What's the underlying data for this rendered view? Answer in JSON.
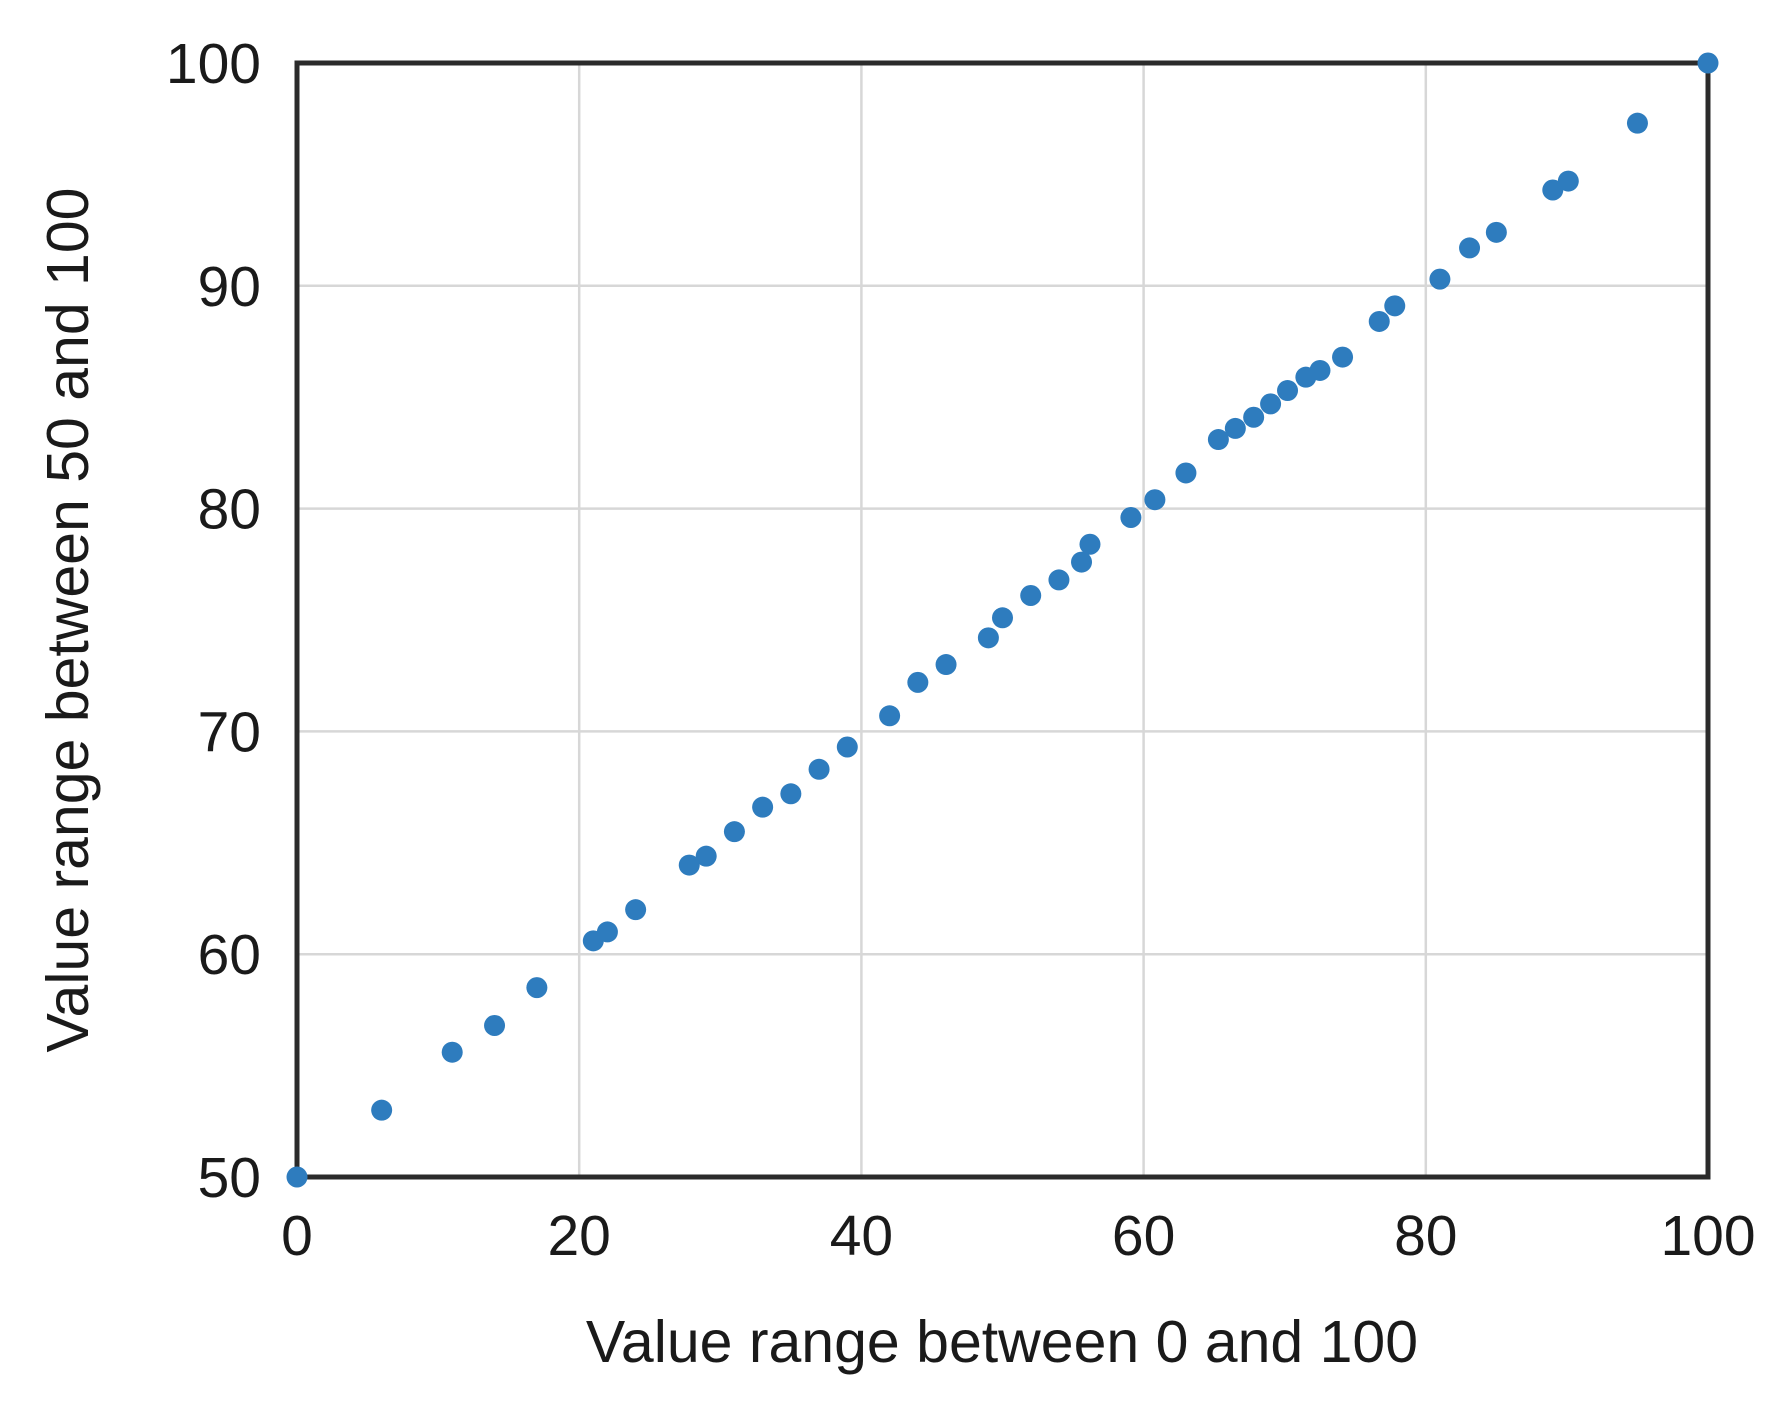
{
  "chart_data": {
    "type": "scatter",
    "title": "",
    "xlabel": "Value range between 0 and 100",
    "ylabel": "Value range between 50 and 100",
    "xlim": [
      0,
      100
    ],
    "ylim": [
      50,
      100
    ],
    "x_ticks": [
      0,
      20,
      40,
      60,
      80,
      100
    ],
    "y_ticks": [
      50,
      60,
      70,
      80,
      90,
      100
    ],
    "grid": true,
    "legend": "none",
    "marker_color": "#2e7cbe",
    "axis_color": "#2b2b2b",
    "grid_color": "#d7d7d7",
    "text_color": "#1a1a1a",
    "series": [
      {
        "name": "values",
        "points": [
          [
            0,
            50.0
          ],
          [
            6,
            53.0
          ],
          [
            11,
            55.6
          ],
          [
            14,
            56.8
          ],
          [
            17,
            58.5
          ],
          [
            21,
            60.6
          ],
          [
            22,
            61.0
          ],
          [
            24,
            62.0
          ],
          [
            27.8,
            64.0
          ],
          [
            29,
            64.4
          ],
          [
            31,
            65.5
          ],
          [
            33,
            66.6
          ],
          [
            35,
            67.2
          ],
          [
            37,
            68.3
          ],
          [
            39,
            69.3
          ],
          [
            42,
            70.7
          ],
          [
            44,
            72.2
          ],
          [
            46,
            73.0
          ],
          [
            49,
            74.2
          ],
          [
            50,
            75.1
          ],
          [
            52,
            76.1
          ],
          [
            54,
            76.8
          ],
          [
            55.6,
            77.6
          ],
          [
            56.2,
            78.4
          ],
          [
            59.1,
            79.6
          ],
          [
            60.8,
            80.4
          ],
          [
            63,
            81.6
          ],
          [
            65.3,
            83.1
          ],
          [
            66.5,
            83.6
          ],
          [
            67.8,
            84.1
          ],
          [
            69,
            84.7
          ],
          [
            70.2,
            85.3
          ],
          [
            71.5,
            85.9
          ],
          [
            72.5,
            86.2
          ],
          [
            74.1,
            86.8
          ],
          [
            76.7,
            88.4
          ],
          [
            77.8,
            89.1
          ],
          [
            81,
            90.3
          ],
          [
            83.1,
            91.7
          ],
          [
            85,
            92.4
          ],
          [
            89,
            94.3
          ],
          [
            90.1,
            94.7
          ],
          [
            95,
            97.3
          ],
          [
            100,
            100.0
          ]
        ]
      }
    ]
  }
}
